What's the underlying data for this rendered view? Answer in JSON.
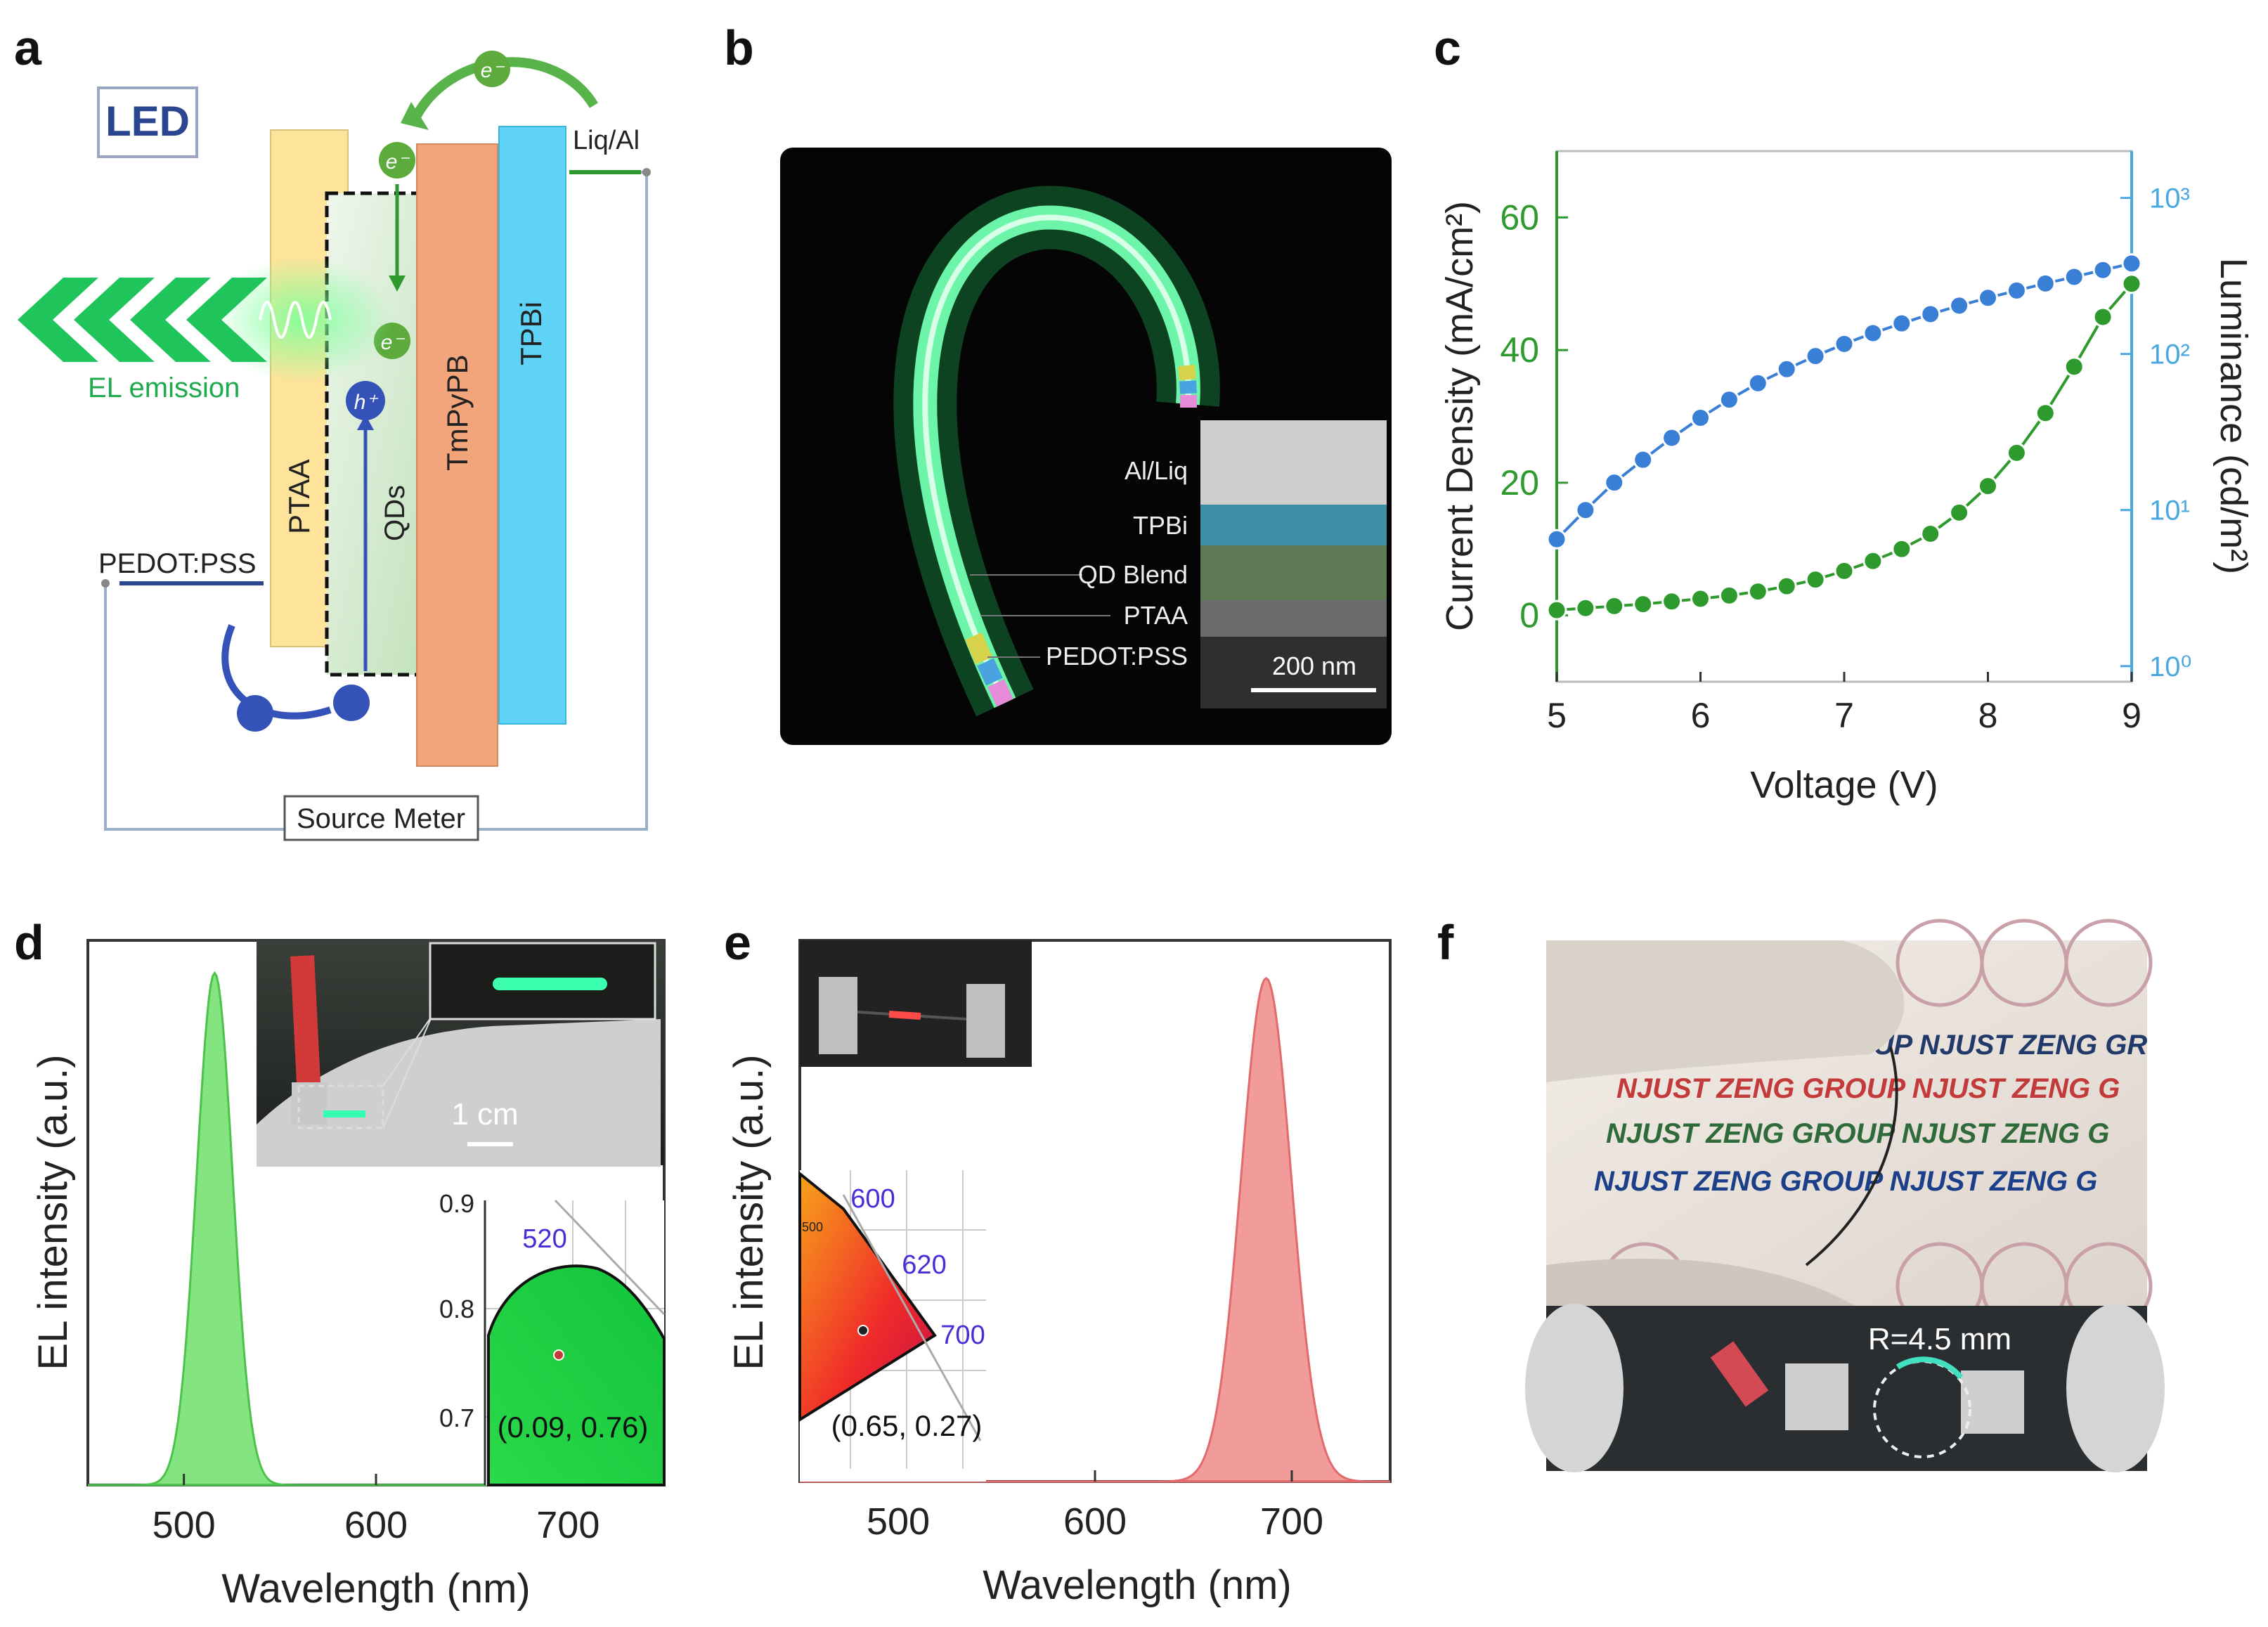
{
  "panel_letters": {
    "a": "a",
    "b": "b",
    "c": "c",
    "d": "d",
    "e": "e",
    "f": "f"
  },
  "colors": {
    "green_curve": "#2e9a2e",
    "blue_curve": "#3a7fd6",
    "green_axis": "#2e9a2e",
    "blue_axis": "#49a8e0",
    "green_spectrum": "#6ee06a",
    "red_spectrum": "#f08a8a",
    "cie_label": "#4a2bd6",
    "ptaa": "#fde49a",
    "tmpypb": "#f2a57a",
    "tpbi": "#5fd3f5"
  },
  "panel_a": {
    "led_label": "LED",
    "ptaa": "PTAA",
    "qds": "QDs",
    "tmpypb": "TmPyPB",
    "tpbi": "TPBi",
    "liq_al": "Liq/Al",
    "pedot": "PEDOT:PSS",
    "el_emission": "EL emission",
    "electron": "e⁻",
    "hole": "h⁺",
    "source_meter": "Source Meter"
  },
  "panel_b": {
    "layers": [
      "Al/Liq",
      "TPBi",
      "QD Blend",
      "PTAA",
      "PEDOT:PSS"
    ],
    "scale": "200 nm"
  },
  "chart_data": [
    {
      "panel": "c",
      "type": "line",
      "xlabel": "Voltage (V)",
      "ylabel": "Current Density (mA/cm²)",
      "y2label": "Luminance (cd/m²)",
      "xlim": [
        5,
        9
      ],
      "ylim": [
        -10,
        70
      ],
      "xticks": [
        "5",
        "6",
        "7",
        "8",
        "9"
      ],
      "yticks": [
        "0",
        "20",
        "40",
        "60"
      ],
      "y2ticks": [
        "10⁰",
        "10¹",
        "10²",
        "10³"
      ],
      "y2lim_log10": [
        -0.1,
        3.3
      ],
      "series": [
        {
          "name": "Current Density",
          "axis": "left",
          "x": [
            5.0,
            5.2,
            5.4,
            5.6,
            5.8,
            6.0,
            6.2,
            6.4,
            6.6,
            6.8,
            7.0,
            7.2,
            7.4,
            7.6,
            7.8,
            8.0,
            8.2,
            8.4,
            8.6,
            8.8,
            9.0
          ],
          "values": [
            0.8,
            1.1,
            1.4,
            1.7,
            2.1,
            2.5,
            3.0,
            3.6,
            4.4,
            5.4,
            6.7,
            8.2,
            10.0,
            12.3,
            15.5,
            19.5,
            24.5,
            30.5,
            37.5,
            45.0,
            50.0
          ]
        },
        {
          "name": "Luminance",
          "axis": "right",
          "x": [
            5.0,
            5.2,
            5.4,
            5.6,
            5.8,
            6.0,
            6.2,
            6.4,
            6.6,
            6.8,
            7.0,
            7.2,
            7.4,
            7.6,
            7.8,
            8.0,
            8.2,
            8.4,
            8.6,
            8.8,
            9.0
          ],
          "values": [
            6.5,
            10,
            15,
            21,
            29,
            39,
            51,
            65,
            80,
            97,
            116,
            136,
            157,
            180,
            204,
            229,
            255,
            283,
            312,
            345,
            380
          ]
        }
      ]
    },
    {
      "panel": "d",
      "type": "area",
      "xlabel": "Wavelength (nm)",
      "ylabel": "EL intensity (a.u.)",
      "xlim": [
        450,
        750
      ],
      "xticks": [
        "500",
        "600",
        "700"
      ],
      "peak_nm": 516,
      "fwhm_nm": 22,
      "ylim": [
        0,
        1.0
      ],
      "peak_value": 0.94,
      "inset_scale": "1 cm",
      "cie": {
        "yticks": [
          "0.9",
          "0.8",
          "0.7"
        ],
        "wavelength": "520",
        "coord": "(0.09, 0.76)"
      }
    },
    {
      "panel": "e",
      "type": "area",
      "xlabel": "Wavelength (nm)",
      "ylabel": "EL intensity (a.u.)",
      "xlim": [
        450,
        750
      ],
      "xticks": [
        "500",
        "600",
        "700"
      ],
      "peak_nm": 687,
      "fwhm_nm": 30,
      "ylim": [
        0,
        1.0
      ],
      "peak_value": 0.93,
      "cie": {
        "wavelengths": [
          "600",
          "620",
          "700"
        ],
        "small_label": "500",
        "coord": "(0.65, 0.27)"
      }
    }
  ],
  "panel_f": {
    "banner_lines": [
      "NJUST ZENG GROUP NJUST ZENG GR",
      "NJUST ZENG GROUP NJUST ZENG G",
      "NJUST ZENG GROUP NJUST ZENG G",
      "NJUST ZENG GROUP NJUST ZENG G"
    ],
    "radius_label": "R=4.5 mm"
  }
}
